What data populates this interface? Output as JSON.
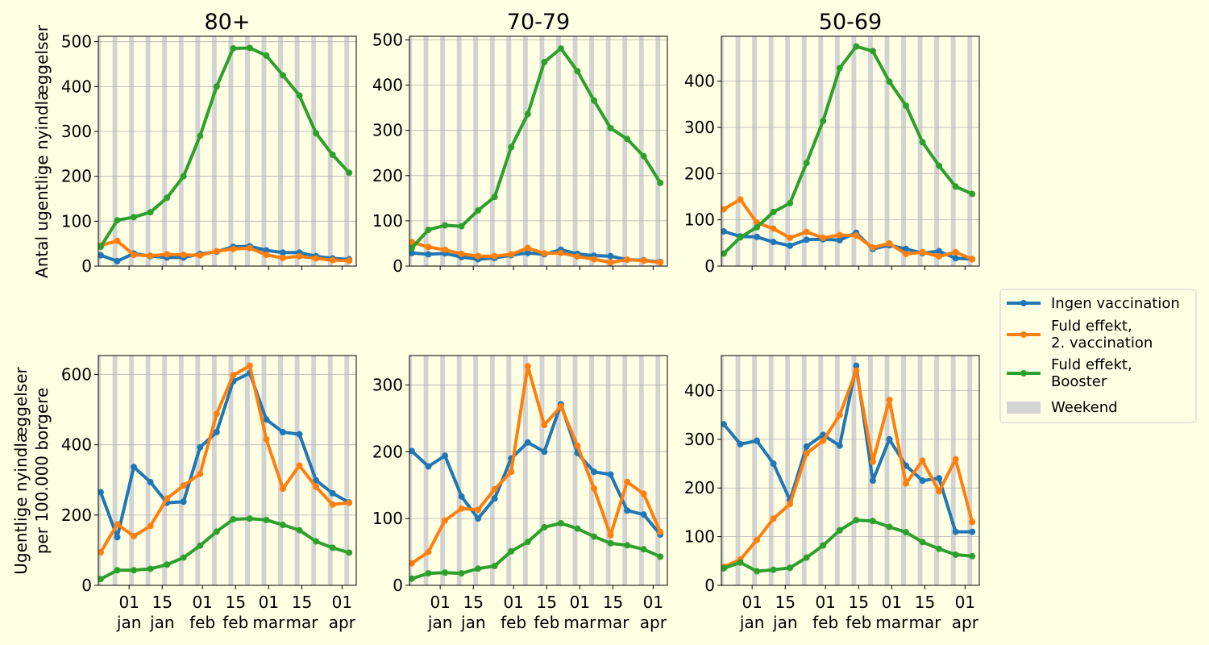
{
  "figure": {
    "background": "#ffffe4",
    "weekend_color": "#d3d3d3",
    "grid_color": "#b0b0b0",
    "row_ylabels": [
      "Antal ugentlige nyindlæggelser",
      "Ugentlige nyindlæggelser\nper 100.000 borgere"
    ]
  },
  "legend": {
    "placement": "right",
    "entries": [
      {
        "label": "Ingen vaccination",
        "type": "line",
        "color": "#1f77b4"
      },
      {
        "label": "Fuld effekt,\n2. vaccination",
        "type": "line",
        "color": "#ff7f0e"
      },
      {
        "label": "Fuld effekt,\nBooster",
        "type": "line",
        "color": "#2ca02c"
      },
      {
        "label": "Weekend",
        "type": "patch",
        "color": "#d3d3d3"
      }
    ]
  },
  "chart_data": [
    {
      "type": "line",
      "title": "80+",
      "xlabel": "",
      "ylabel": "Antal ugentlige nyindlæggelser",
      "ylim": [
        0,
        512
      ],
      "yticks": [
        0,
        100,
        200,
        300,
        400,
        500
      ],
      "grid": "y",
      "show_xticklabels": false,
      "x": [
        "2021-12-20",
        "2021-12-27",
        "2022-01-03",
        "2022-01-10",
        "2022-01-17",
        "2022-01-24",
        "2022-01-31",
        "2022-02-07",
        "2022-02-14",
        "2022-02-21",
        "2022-02-28",
        "2022-03-07",
        "2022-03-14",
        "2022-03-21",
        "2022-03-28",
        "2022-04-04"
      ],
      "series": [
        {
          "name": "Ingen vaccination",
          "color": "#1f77b4",
          "values": [
            24,
            11,
            28,
            22,
            19,
            19,
            27,
            32,
            43,
            44,
            35,
            30,
            30,
            22,
            17,
            15
          ]
        },
        {
          "name": "Fuld effekt, 2. vaccination",
          "color": "#ff7f0e",
          "values": [
            46,
            56,
            25,
            23,
            26,
            25,
            24,
            33,
            38,
            40,
            25,
            18,
            22,
            17,
            13,
            12
          ]
        },
        {
          "name": "Fuld effekt, Booster",
          "color": "#2ca02c",
          "values": [
            43,
            102,
            109,
            120,
            152,
            200,
            290,
            400,
            485,
            486,
            469,
            425,
            380,
            296,
            248,
            208
          ]
        }
      ]
    },
    {
      "type": "line",
      "title": "70-79",
      "xlabel": "",
      "ylabel": "",
      "ylim": [
        0,
        508
      ],
      "yticks": [
        0,
        100,
        200,
        300,
        400,
        500
      ],
      "grid": "y",
      "show_xticklabels": false,
      "x": [
        "2021-12-20",
        "2021-12-27",
        "2022-01-03",
        "2022-01-10",
        "2022-01-17",
        "2022-01-24",
        "2022-01-31",
        "2022-02-07",
        "2022-02-14",
        "2022-02-21",
        "2022-02-28",
        "2022-03-07",
        "2022-03-14",
        "2022-03-21",
        "2022-03-28",
        "2022-04-04"
      ],
      "series": [
        {
          "name": "Ingen vaccination",
          "color": "#1f77b4",
          "values": [
            29,
            26,
            28,
            20,
            15,
            18,
            24,
            29,
            26,
            36,
            27,
            23,
            22,
            14,
            13,
            9
          ]
        },
        {
          "name": "Fuld effekt, 2. vaccination",
          "color": "#ff7f0e",
          "values": [
            53,
            42,
            36,
            27,
            22,
            22,
            26,
            40,
            28,
            29,
            21,
            15,
            8,
            14,
            12,
            8
          ]
        },
        {
          "name": "Fuld effekt, Booster",
          "color": "#2ca02c",
          "values": [
            40,
            80,
            90,
            88,
            123,
            153,
            263,
            336,
            451,
            481,
            431,
            366,
            305,
            281,
            243,
            184
          ]
        }
      ]
    },
    {
      "type": "line",
      "title": "50-69",
      "xlabel": "",
      "ylabel": "",
      "ylim": [
        0,
        497
      ],
      "yticks": [
        0,
        100,
        200,
        300,
        400
      ],
      "grid": "y",
      "show_xticklabels": false,
      "x": [
        "2021-12-20",
        "2021-12-27",
        "2022-01-03",
        "2022-01-10",
        "2022-01-17",
        "2022-01-24",
        "2022-01-31",
        "2022-02-07",
        "2022-02-14",
        "2022-02-21",
        "2022-02-28",
        "2022-03-07",
        "2022-03-14",
        "2022-03-21",
        "2022-03-28",
        "2022-04-04"
      ],
      "series": [
        {
          "name": "Ingen vaccination",
          "color": "#1f77b4",
          "values": [
            75,
            64,
            63,
            52,
            44,
            57,
            58,
            56,
            72,
            37,
            45,
            37,
            28,
            32,
            17,
            15
          ]
        },
        {
          "name": "Fuld effekt, 2. vaccination",
          "color": "#ff7f0e",
          "values": [
            123,
            144,
            94,
            81,
            61,
            74,
            61,
            67,
            66,
            40,
            49,
            26,
            30,
            21,
            30,
            15
          ]
        },
        {
          "name": "Fuld effekt, Booster",
          "color": "#2ca02c",
          "values": [
            27,
            62,
            84,
            117,
            136,
            223,
            314,
            428,
            475,
            465,
            399,
            347,
            268,
            217,
            172,
            156
          ]
        }
      ]
    },
    {
      "type": "line",
      "title": "",
      "xlabel": "",
      "ylabel": "Ugentlige nyindlæggelser\nper 100.000 borgere",
      "ylim": [
        0,
        654
      ],
      "yticks": [
        0,
        200,
        400,
        600
      ],
      "grid": "y",
      "show_xticklabels": true,
      "xticklabels": [
        "01\njan",
        "15\njan",
        "01\nfeb",
        "15\nfeb",
        "01\nmar",
        "15\nmar",
        "01\napr"
      ],
      "x": [
        "2021-12-20",
        "2021-12-27",
        "2022-01-03",
        "2022-01-10",
        "2022-01-17",
        "2022-01-24",
        "2022-01-31",
        "2022-02-07",
        "2022-02-14",
        "2022-02-21",
        "2022-02-28",
        "2022-03-07",
        "2022-03-14",
        "2022-03-21",
        "2022-03-28",
        "2022-04-04"
      ],
      "series": [
        {
          "name": "Ingen vaccination",
          "color": "#1f77b4",
          "values": [
            265,
            137,
            337,
            294,
            235,
            238,
            393,
            436,
            581,
            604,
            472,
            436,
            430,
            299,
            262,
            236
          ]
        },
        {
          "name": "Fuld effekt, 2. vaccination",
          "color": "#ff7f0e",
          "values": [
            94,
            174,
            140,
            169,
            247,
            284,
            317,
            488,
            598,
            625,
            416,
            275,
            341,
            280,
            230,
            235
          ]
        },
        {
          "name": "Fuld effekt, Booster",
          "color": "#2ca02c",
          "values": [
            18,
            43,
            43,
            47,
            59,
            79,
            113,
            153,
            188,
            190,
            186,
            172,
            157,
            125,
            107,
            93
          ]
        }
      ]
    },
    {
      "type": "line",
      "title": "",
      "xlabel": "",
      "ylabel": "",
      "ylim": [
        0,
        344
      ],
      "yticks": [
        0,
        100,
        200,
        300
      ],
      "grid": "y",
      "show_xticklabels": true,
      "xticklabels": [
        "01\njan",
        "15\njan",
        "01\nfeb",
        "15\nfeb",
        "01\nmar",
        "15\nmar",
        "01\napr"
      ],
      "x": [
        "2021-12-20",
        "2021-12-27",
        "2022-01-03",
        "2022-01-10",
        "2022-01-17",
        "2022-01-24",
        "2022-01-31",
        "2022-02-07",
        "2022-02-14",
        "2022-02-21",
        "2022-02-28",
        "2022-03-07",
        "2022-03-14",
        "2022-03-21",
        "2022-03-28",
        "2022-04-04"
      ],
      "series": [
        {
          "name": "Ingen vaccination",
          "color": "#1f77b4",
          "values": [
            201,
            178,
            194,
            133,
            100,
            130,
            190,
            214,
            200,
            271,
            198,
            170,
            166,
            112,
            106,
            76
          ]
        },
        {
          "name": "Fuld effekt, 2. vaccination",
          "color": "#ff7f0e",
          "values": [
            33,
            50,
            97,
            115,
            113,
            144,
            170,
            328,
            240,
            268,
            209,
            145,
            75,
            155,
            137,
            80
          ]
        },
        {
          "name": "Fuld effekt, Booster",
          "color": "#2ca02c",
          "values": [
            10,
            18,
            19,
            18,
            25,
            29,
            51,
            65,
            87,
            93,
            85,
            73,
            63,
            60,
            54,
            43
          ]
        }
      ]
    },
    {
      "type": "line",
      "title": "",
      "xlabel": "",
      "ylabel": "",
      "ylim": [
        0,
        472
      ],
      "yticks": [
        0,
        100,
        200,
        300,
        400
      ],
      "grid": "y",
      "show_xticklabels": true,
      "xticklabels": [
        "01\njan",
        "15\njan",
        "01\nfeb",
        "15\nfeb",
        "01\nmar",
        "15\nmar",
        "01\napr"
      ],
      "x": [
        "2021-12-20",
        "2021-12-27",
        "2022-01-03",
        "2022-01-10",
        "2022-01-17",
        "2022-01-24",
        "2022-01-31",
        "2022-02-07",
        "2022-02-14",
        "2022-02-21",
        "2022-02-28",
        "2022-03-07",
        "2022-03-14",
        "2022-03-21",
        "2022-03-28",
        "2022-04-04"
      ],
      "series": [
        {
          "name": "Ingen vaccination",
          "color": "#1f77b4",
          "values": [
            331,
            290,
            297,
            250,
            175,
            285,
            309,
            287,
            451,
            215,
            300,
            246,
            215,
            220,
            110,
            110
          ]
        },
        {
          "name": "Fuld effekt, 2. vaccination",
          "color": "#ff7f0e",
          "values": [
            38,
            53,
            93,
            137,
            167,
            271,
            297,
            350,
            441,
            254,
            381,
            209,
            256,
            193,
            259,
            130
          ]
        },
        {
          "name": "Fuld effekt, Booster",
          "color": "#2ca02c",
          "values": [
            35,
            47,
            29,
            32,
            36,
            57,
            82,
            113,
            134,
            132,
            120,
            109,
            89,
            75,
            63,
            60
          ]
        }
      ]
    }
  ]
}
